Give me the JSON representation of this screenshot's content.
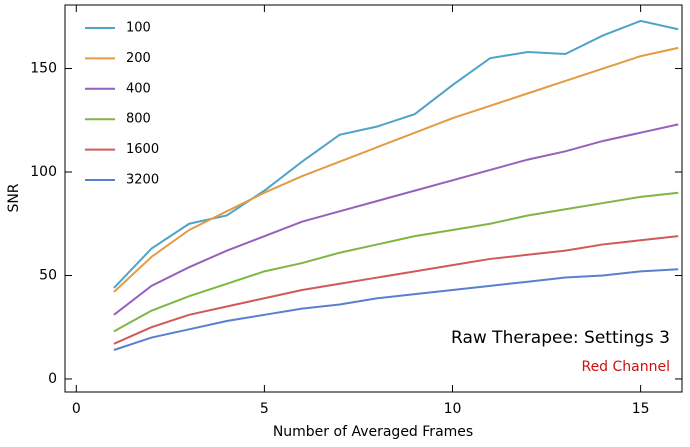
{
  "chart_data": {
    "type": "line",
    "x_label": "Number of Averaged Frames",
    "y_label": "SNR",
    "x": [
      1,
      2,
      3,
      4,
      5,
      6,
      7,
      8,
      9,
      10,
      11,
      12,
      13,
      14,
      15,
      16
    ],
    "series": [
      {
        "name": "100",
        "color": "#4fa3c9",
        "values": [
          44,
          63,
          75,
          79,
          91,
          105,
          118,
          122,
          128,
          142,
          155,
          158,
          157,
          166,
          173,
          169
        ]
      },
      {
        "name": "200",
        "color": "#e19c45",
        "values": [
          42,
          59,
          72,
          81,
          90,
          98,
          105,
          112,
          119,
          126,
          132,
          138,
          144,
          150,
          156,
          160
        ]
      },
      {
        "name": "400",
        "color": "#9461bd",
        "values": [
          31,
          45,
          54,
          62,
          69,
          76,
          81,
          86,
          91,
          96,
          101,
          106,
          110,
          115,
          119,
          123
        ]
      },
      {
        "name": "800",
        "color": "#80b546",
        "values": [
          23,
          33,
          40,
          46,
          52,
          56,
          61,
          65,
          69,
          72,
          75,
          79,
          82,
          85,
          88,
          90
        ]
      },
      {
        "name": "1600",
        "color": "#d05a5a",
        "values": [
          17,
          25,
          31,
          35,
          39,
          43,
          46,
          49,
          52,
          55,
          58,
          60,
          62,
          65,
          67,
          69
        ]
      },
      {
        "name": "3200",
        "color": "#5a7fd0",
        "values": [
          14,
          20,
          24,
          28,
          31,
          34,
          36,
          39,
          41,
          43,
          45,
          47,
          49,
          50,
          52,
          53
        ]
      }
    ],
    "xlim": [
      -0.3,
      16.1
    ],
    "ylim": [
      -6.3,
      180.7
    ],
    "xticks": [
      0,
      5,
      10,
      15
    ],
    "yticks": [
      0,
      50,
      100,
      150
    ],
    "legend": "upper-left",
    "annotations": [
      {
        "text": "Raw Therapee: Settings 3",
        "color": "#000000"
      },
      {
        "text": "Red Channel",
        "color": "#cc1111"
      }
    ]
  }
}
